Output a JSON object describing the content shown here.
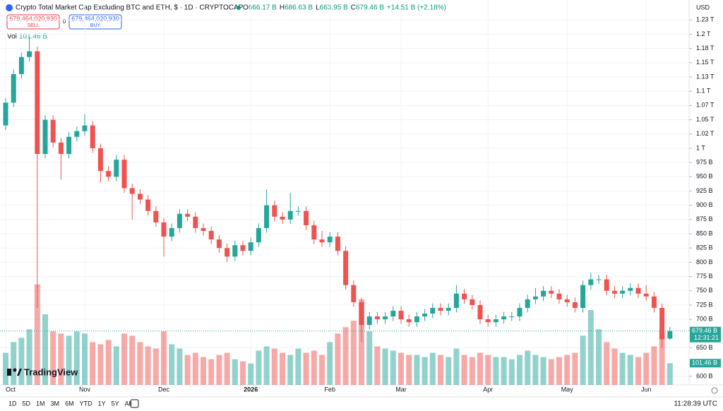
{
  "chart_data": {
    "type": "candlestick",
    "title": "Crypto Total Market Cap Excluding BTC and ETH, $ · 1D · CRYPTOCAP",
    "ohlc_legend": [
      {
        "label": "O",
        "value": "666.17 B"
      },
      {
        "label": "H",
        "value": "686.63 B"
      },
      {
        "label": "L",
        "value": "663.95 B"
      },
      {
        "label": "C",
        "value": "679.46 B"
      },
      {
        "label": "",
        "value": "+14.51 B (+2.18%)"
      }
    ],
    "sell_price": "679,464,020,930",
    "sell_label": "SELL",
    "spread": "0",
    "buy_price": "679,464,020,930",
    "buy_label": "BUY",
    "volume_label": "Vol",
    "volume_value": "101.46 B",
    "currency": "USD",
    "last_price_label": "679.46 B",
    "countdown": "12:31:21",
    "last_volume_label": "101.46 B",
    "logo": "TradingView",
    "time": "11:28:39 UTC",
    "ranges": [
      "1D",
      "5D",
      "1M",
      "3M",
      "6M",
      "YTD",
      "1Y",
      "5Y",
      "All"
    ],
    "up_color": "#26a69a",
    "down_color": "#ef5350",
    "categories": [
      "Oct",
      null,
      null,
      null,
      null,
      null,
      null,
      null,
      null,
      null,
      "Nov",
      null,
      null,
      null,
      null,
      null,
      null,
      null,
      null,
      null,
      "Dec",
      null,
      null,
      null,
      null,
      null,
      null,
      null,
      null,
      null,
      null,
      "2026",
      null,
      null,
      null,
      null,
      null,
      null,
      null,
      null,
      null,
      "Feb",
      null,
      null,
      null,
      null,
      null,
      null,
      null,
      null,
      "Mar",
      null,
      null,
      null,
      null,
      null,
      null,
      null,
      null,
      null,
      null,
      "Apr",
      null,
      null,
      null,
      null,
      null,
      null,
      null,
      null,
      null,
      "May",
      null,
      null,
      null,
      null,
      null,
      null,
      null,
      null,
      null,
      "Jun",
      null,
      null,
      null
    ],
    "open": [
      1040,
      1080,
      1130,
      1160,
      1170,
      990,
      1050,
      1010,
      990,
      1020,
      1030,
      1040,
      1000,
      960,
      950,
      980,
      930,
      920,
      910,
      890,
      870,
      845,
      860,
      885,
      880,
      860,
      855,
      840,
      825,
      810,
      830,
      820,
      835,
      860,
      900,
      880,
      875,
      890,
      890,
      865,
      840,
      835,
      845,
      820,
      760,
      730,
      690,
      705,
      700,
      705,
      715,
      700,
      695,
      705,
      710,
      720,
      715,
      720,
      745,
      735,
      725,
      700,
      695,
      700,
      705,
      705,
      720,
      735,
      740,
      750,
      745,
      735,
      730,
      720,
      760,
      770,
      770,
      750,
      745,
      750,
      755,
      745,
      740,
      720,
      666.17
    ],
    "high": [
      1088,
      1138,
      1168,
      1195,
      1178,
      1058,
      1058,
      1018,
      1028,
      1038,
      1060,
      1048,
      1008,
      968,
      988,
      988,
      938,
      928,
      918,
      898,
      878,
      868,
      893,
      893,
      888,
      868,
      863,
      848,
      833,
      838,
      838,
      843,
      868,
      928,
      908,
      888,
      922,
      898,
      898,
      873,
      855,
      853,
      853,
      828,
      768,
      738,
      713,
      713,
      713,
      723,
      723,
      708,
      713,
      718,
      728,
      728,
      728,
      760,
      753,
      743,
      733,
      708,
      708,
      713,
      713,
      728,
      743,
      755,
      758,
      758,
      753,
      743,
      738,
      768,
      782,
      778,
      778,
      758,
      758,
      763,
      763,
      760,
      748,
      728,
      686.63
    ],
    "low": [
      1032,
      1072,
      1122,
      1152,
      720,
      982,
      1002,
      945,
      982,
      1012,
      1022,
      992,
      940,
      942,
      942,
      922,
      875,
      902,
      882,
      862,
      810,
      837,
      852,
      872,
      852,
      847,
      832,
      817,
      800,
      802,
      812,
      812,
      827,
      852,
      872,
      867,
      867,
      882,
      857,
      832,
      827,
      827,
      812,
      752,
      722,
      660,
      682,
      692,
      692,
      697,
      692,
      687,
      687,
      697,
      702,
      707,
      707,
      712,
      727,
      717,
      692,
      687,
      687,
      692,
      697,
      697,
      712,
      727,
      732,
      737,
      727,
      722,
      712,
      712,
      752,
      762,
      742,
      737,
      737,
      742,
      737,
      732,
      712,
      650,
      663.95
    ],
    "close": [
      1080,
      1130,
      1160,
      1170,
      990,
      1050,
      1010,
      990,
      1020,
      1030,
      1040,
      1000,
      960,
      950,
      980,
      930,
      920,
      910,
      890,
      870,
      845,
      860,
      885,
      880,
      860,
      855,
      840,
      825,
      810,
      830,
      820,
      835,
      860,
      900,
      880,
      875,
      890,
      890,
      865,
      840,
      835,
      845,
      820,
      760,
      730,
      690,
      705,
      700,
      705,
      715,
      700,
      695,
      705,
      710,
      720,
      715,
      720,
      745,
      735,
      725,
      700,
      695,
      700,
      705,
      705,
      720,
      735,
      740,
      750,
      745,
      735,
      730,
      720,
      760,
      770,
      770,
      750,
      745,
      750,
      755,
      745,
      740,
      720,
      665,
      679.46
    ],
    "volume": [
      150,
      200,
      220,
      260,
      470,
      330,
      250,
      240,
      230,
      250,
      240,
      200,
      190,
      210,
      180,
      240,
      230,
      200,
      180,
      170,
      250,
      190,
      170,
      140,
      150,
      130,
      120,
      140,
      150,
      120,
      110,
      100,
      160,
      180,
      170,
      150,
      140,
      170,
      150,
      160,
      140,
      200,
      240,
      270,
      300,
      400,
      250,
      180,
      170,
      160,
      150,
      140,
      140,
      130,
      150,
      140,
      130,
      170,
      140,
      130,
      150,
      140,
      130,
      130,
      120,
      140,
      160,
      140,
      130,
      120,
      130,
      140,
      150,
      230,
      350,
      260,
      200,
      170,
      150,
      140,
      130,
      150,
      180,
      250,
      101.46
    ],
    "ylim": [
      585,
      1260
    ],
    "volume_lim": [
      0,
      1800
    ],
    "yticks": [
      {
        "value": 1225,
        "label": "1.23 T"
      },
      {
        "value": 1200,
        "label": "1.2 T"
      },
      {
        "value": 1175,
        "label": "1.18 T"
      },
      {
        "value": 1150,
        "label": "1.15 T"
      },
      {
        "value": 1125,
        "label": "1.13 T"
      },
      {
        "value": 1100,
        "label": "1.1 T"
      },
      {
        "value": 1075,
        "label": "1.07 T"
      },
      {
        "value": 1050,
        "label": "1.05 T"
      },
      {
        "value": 1025,
        "label": "1.02 T"
      },
      {
        "value": 1000,
        "label": "1 T"
      },
      {
        "value": 975,
        "label": "975 B"
      },
      {
        "value": 950,
        "label": "950 B"
      },
      {
        "value": 925,
        "label": "925 B"
      },
      {
        "value": 900,
        "label": "900 B"
      },
      {
        "value": 875,
        "label": "875 B"
      },
      {
        "value": 850,
        "label": "850 B"
      },
      {
        "value": 825,
        "label": "825 B"
      },
      {
        "value": 800,
        "label": "800 B"
      },
      {
        "value": 775,
        "label": "775 B"
      },
      {
        "value": 750,
        "label": "750 B"
      },
      {
        "value": 725,
        "label": "725 B"
      },
      {
        "value": 700,
        "label": "700 B"
      },
      {
        "value": 650,
        "label": "650 B"
      },
      {
        "value": 600,
        "label": "600 B"
      }
    ],
    "grid": true
  }
}
